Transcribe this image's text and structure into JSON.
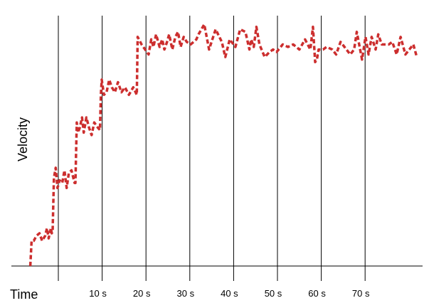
{
  "chart_data": {
    "type": "line",
    "title": "",
    "xlabel": "Time",
    "ylabel": "Velocity",
    "xlim": [
      -6.5,
      82
    ],
    "ylim": [
      0,
      1.0
    ],
    "grid": "vertical",
    "legend": "none",
    "tick_labels": [
      "10 s",
      "20 s",
      "30 s",
      "40 s",
      "50 s",
      "60 s",
      "70 s"
    ],
    "tick_values": [
      10,
      20,
      30,
      40,
      50,
      60,
      70
    ],
    "gridline_values": [
      0,
      10,
      20,
      30,
      40,
      50,
      60,
      70
    ],
    "series": [
      {
        "color": "#cc2e2e",
        "x": [
          -6.4,
          -6.1,
          -5.6,
          -5.0,
          -4.3,
          -3.7,
          -3.0,
          -2.6,
          -2.2,
          -1.7,
          -1.5,
          -1.3,
          -1.0,
          -0.6,
          -0.2,
          0.3,
          0.9,
          1.4,
          1.9,
          2.4,
          3.0,
          3.7,
          3.9,
          4.2,
          4.5,
          4.9,
          5.4,
          5.8,
          6.4,
          7.0,
          7.6,
          8.2,
          9.0,
          9.5,
          9.7,
          9.9,
          10.4,
          11.0,
          11.6,
          12.2,
          12.9,
          13.6,
          14.4,
          15.2,
          16.1,
          17.1,
          17.9,
          18.1,
          18.4,
          19.0,
          19.8,
          20.6,
          21.2,
          21.7,
          22.3,
          23.1,
          23.7,
          24.2,
          24.8,
          25.3,
          26.0,
          26.7,
          27.3,
          27.9,
          28.6,
          29.3,
          30.2,
          31.5,
          32.0,
          33.3,
          34.4,
          35.9,
          37.3,
          38.1,
          39.1,
          40.4,
          41.5,
          42.7,
          43.6,
          44.0,
          44.6,
          45.2,
          45.9,
          47.1,
          48.2,
          49.0,
          49.8,
          51.2,
          52.4,
          53.6,
          55.0,
          56.3,
          57.5,
          58.1,
          58.6,
          59.0,
          59.4,
          60.4,
          61.2,
          62.5,
          63.4,
          64.4,
          65.3,
          66.6,
          67.5,
          68.1,
          69.3,
          70.1,
          70.8,
          71.5,
          72.4,
          73.0,
          73.8,
          74.5,
          75.4,
          76.2,
          77.2,
          78.1,
          79.2,
          80.1,
          81.0,
          81.8
        ],
        "y": [
          0.0,
          0.1,
          0.1,
          0.12,
          0.13,
          0.1,
          0.12,
          0.15,
          0.11,
          0.15,
          0.13,
          0.14,
          0.35,
          0.39,
          0.31,
          0.34,
          0.33,
          0.38,
          0.31,
          0.37,
          0.38,
          0.33,
          0.33,
          0.57,
          0.53,
          0.55,
          0.59,
          0.53,
          0.59,
          0.55,
          0.52,
          0.57,
          0.55,
          0.54,
          0.68,
          0.74,
          0.68,
          0.69,
          0.74,
          0.71,
          0.69,
          0.73,
          0.69,
          0.71,
          0.68,
          0.71,
          0.68,
          0.91,
          0.9,
          0.88,
          0.86,
          0.84,
          0.9,
          0.87,
          0.92,
          0.87,
          0.9,
          0.86,
          0.89,
          0.92,
          0.86,
          0.91,
          0.93,
          0.87,
          0.91,
          0.89,
          0.88,
          0.9,
          0.92,
          0.96,
          0.86,
          0.94,
          0.89,
          0.83,
          0.9,
          0.87,
          0.94,
          0.93,
          0.86,
          0.9,
          0.87,
          0.95,
          0.88,
          0.83,
          0.85,
          0.86,
          0.85,
          0.88,
          0.87,
          0.88,
          0.86,
          0.9,
          0.86,
          0.95,
          0.81,
          0.82,
          0.86,
          0.86,
          0.87,
          0.86,
          0.84,
          0.89,
          0.87,
          0.84,
          0.86,
          0.93,
          0.82,
          0.91,
          0.84,
          0.91,
          0.86,
          0.92,
          0.88,
          0.88,
          0.88,
          0.89,
          0.84,
          0.91,
          0.84,
          0.86,
          0.88,
          0.83
        ]
      }
    ]
  }
}
